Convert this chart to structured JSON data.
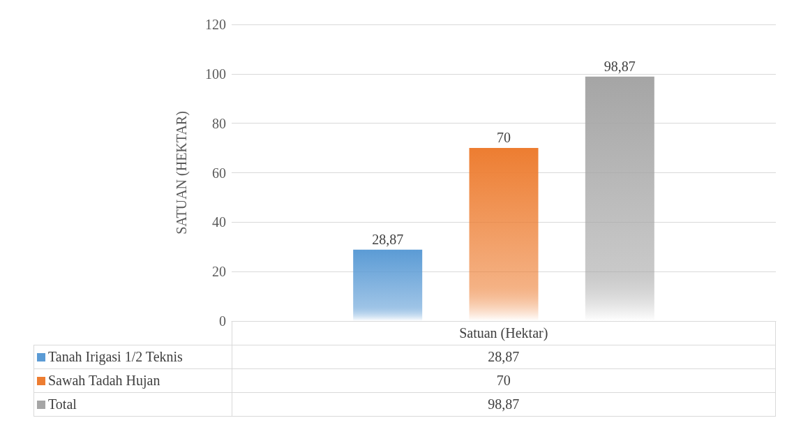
{
  "chart_data": {
    "type": "bar",
    "ylabel": "SATUAN (HEKTAR)",
    "categories": [
      "Satuan (Hektar)"
    ],
    "series": [
      {
        "name": "Tanah Irigasi 1/2 Teknis",
        "color": "#5b9bd5",
        "values": [
          28.87
        ],
        "value_labels": [
          "28,87"
        ]
      },
      {
        "name": "Sawah Tadah Hujan",
        "color": "#ed7d31",
        "values": [
          70
        ],
        "value_labels": [
          "70"
        ]
      },
      {
        "name": "Total",
        "color": "#a5a5a5",
        "values": [
          98.87
        ],
        "value_labels": [
          "98,87"
        ]
      }
    ],
    "ylim": [
      0,
      120
    ],
    "yticks": [
      0,
      20,
      40,
      60,
      80,
      100,
      120
    ],
    "grid": "y",
    "legend": "bottom left"
  }
}
